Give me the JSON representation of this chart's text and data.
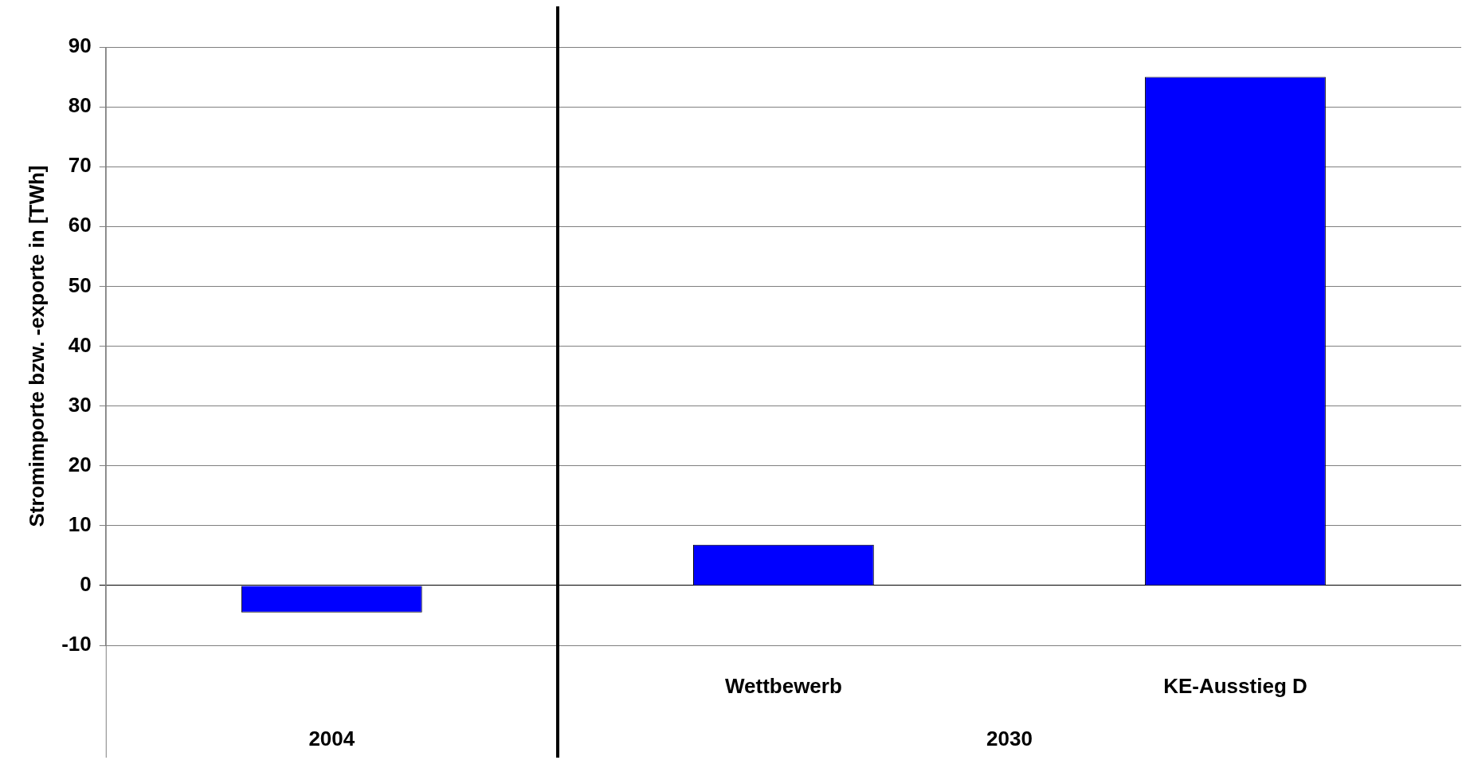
{
  "chart_data": {
    "type": "bar",
    "ylabel": "Stromimporte bzw. -exporte in [TWh]",
    "categories": [
      null,
      "Wettbewerb",
      "KE-Ausstieg D"
    ],
    "values": [
      -4.5,
      6.8,
      85
    ],
    "color": "#0000ff",
    "ylim": [
      -10,
      90
    ],
    "yticks": [
      -10,
      0,
      10,
      20,
      30,
      40,
      50,
      60,
      70,
      80,
      90
    ],
    "grid": "y",
    "annotations": [
      "2004",
      "2030"
    ]
  }
}
